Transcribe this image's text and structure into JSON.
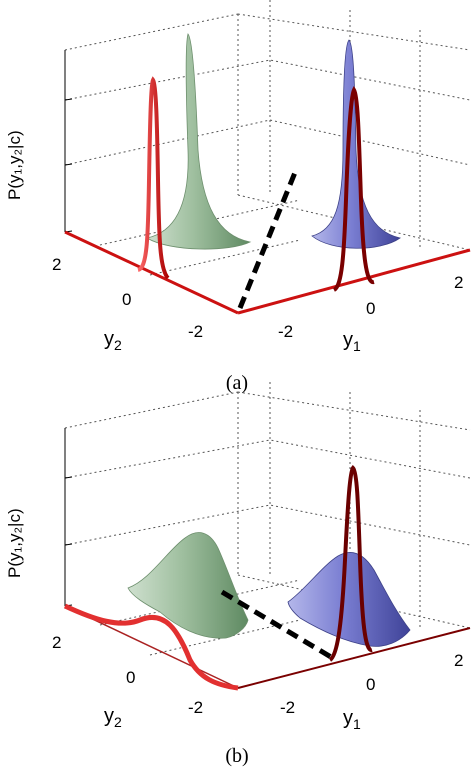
{
  "figure": {
    "panels": [
      {
        "caption": "(a)",
        "z_label": "P(y₁,y₂|c)",
        "x_label": "y",
        "x_label_sub": "1",
        "y_label": "y",
        "y_label_sub": "2",
        "x_ticks": [
          "-2",
          "0",
          "2"
        ],
        "y_ticks": [
          "2",
          "0",
          "-2"
        ]
      },
      {
        "caption": "(b)",
        "z_label": "P(y₁,y₂|c)",
        "x_label": "y",
        "x_label_sub": "1",
        "y_label": "y",
        "y_label_sub": "2",
        "x_ticks": [
          "-2",
          "0",
          "2"
        ],
        "y_ticks": [
          "2",
          "0",
          "-2"
        ]
      }
    ]
  },
  "colors": {
    "class1_surface": "#8fb08f",
    "class2_surface": "#6f73c8",
    "marginal_curve": "#cc1111",
    "decision_boundary": "#000000"
  }
}
